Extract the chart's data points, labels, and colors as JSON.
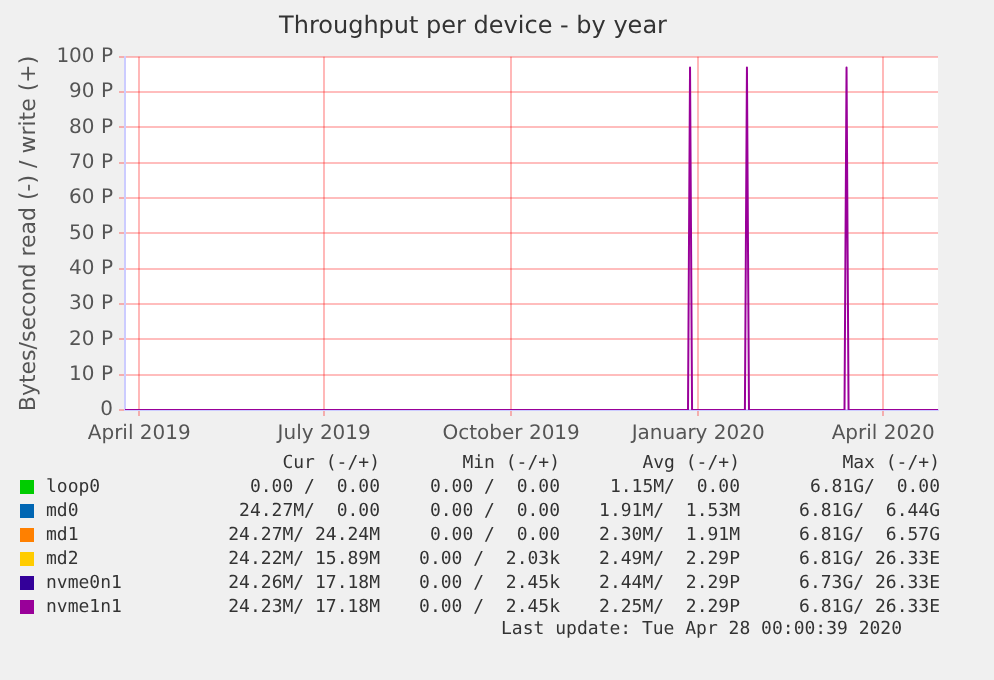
{
  "chart_data": {
    "type": "line",
    "title": "Throughput per device - by year",
    "ylabel": "Bytes/second read (-) / write (+)",
    "x": [
      "2019-03-25",
      "2019-12-27",
      "2019-12-28",
      "2019-12-29",
      "2020-01-24",
      "2020-01-25",
      "2020-01-26",
      "2020-03-13",
      "2020-03-14",
      "2020-03-15",
      "2020-04-28"
    ],
    "series": [
      {
        "name": "loop0",
        "color": "#00cc00",
        "values": [
          null,
          null,
          null,
          null,
          null,
          null,
          null,
          null,
          null,
          null,
          null
        ]
      },
      {
        "name": "md0",
        "color": "#0066b3",
        "values": [
          null,
          null,
          null,
          null,
          null,
          null,
          null,
          null,
          null,
          null,
          null
        ]
      },
      {
        "name": "md1",
        "color": "#ff8000",
        "values": [
          null,
          null,
          null,
          null,
          null,
          null,
          null,
          null,
          null,
          null,
          null
        ]
      },
      {
        "name": "md2",
        "color": "#ffcc00",
        "values": [
          null,
          null,
          null,
          null,
          null,
          null,
          null,
          null,
          null,
          null,
          null
        ]
      },
      {
        "name": "nvme0n1",
        "color": "#330099",
        "values": [
          null,
          null,
          null,
          null,
          null,
          null,
          null,
          null,
          null,
          null,
          null
        ]
      },
      {
        "name": "nvme1n1",
        "color": "#990099",
        "values": [
          0,
          0,
          97,
          0,
          0,
          97,
          0,
          0,
          97,
          0,
          0
        ]
      }
    ],
    "xlim": [
      "2019-03-25",
      "2020-04-28"
    ],
    "xticks": [
      {
        "value": "2019-04-01",
        "label": "April 2019"
      },
      {
        "value": "2019-07-01",
        "label": "July 2019"
      },
      {
        "value": "2019-10-01",
        "label": "October 2019"
      },
      {
        "value": "2020-01-01",
        "label": "January 2020"
      },
      {
        "value": "2020-04-01",
        "label": "April 2020"
      }
    ],
    "ylim": [
      0,
      100
    ],
    "yticks": [
      0,
      {
        "value": 10,
        "label": "10 P"
      },
      {
        "value": 20,
        "label": "20 P"
      },
      {
        "value": 30,
        "label": "30 P"
      },
      {
        "value": 40,
        "label": "40 P"
      },
      {
        "value": 50,
        "label": "50 P"
      },
      {
        "value": 60,
        "label": "60 P"
      },
      {
        "value": 70,
        "label": "70 P"
      },
      {
        "value": 80,
        "label": "80 P"
      },
      {
        "value": 90,
        "label": "90 P"
      },
      {
        "value": 100,
        "label": "100 P"
      }
    ],
    "grid": true,
    "legend": "bottom",
    "marker": "none",
    "line_style": "solid",
    "annotations": [
      "Cur (-/+)",
      "Min (-/+)",
      "Avg (-/+)",
      "Max (-/+)",
      "0.00 /  0.00",
      "0.00 /  0.00",
      "1.15M/  0.00",
      "6.81G/  0.00",
      "24.27M/  0.00",
      "0.00 /  0.00",
      "1.91M/  1.53M",
      "6.81G/  6.44G",
      "24.27M/ 24.24M",
      "0.00 /  0.00",
      "2.30M/  1.91M",
      "6.81G/  6.57G",
      "24.22M/ 15.89M",
      "0.00 /  2.03k",
      "2.49M/  2.29P",
      "6.81G/ 26.33E",
      "24.26M/ 17.18M",
      "0.00 /  2.45k",
      "2.44M/  2.29P",
      "6.73G/ 26.33E",
      "24.23M/ 17.18M",
      "0.00 /  2.45k",
      "2.25M/  2.29P",
      "6.81G/ 26.33E",
      "Last update: Tue Apr 28 00:00:39 2020"
    ]
  }
}
